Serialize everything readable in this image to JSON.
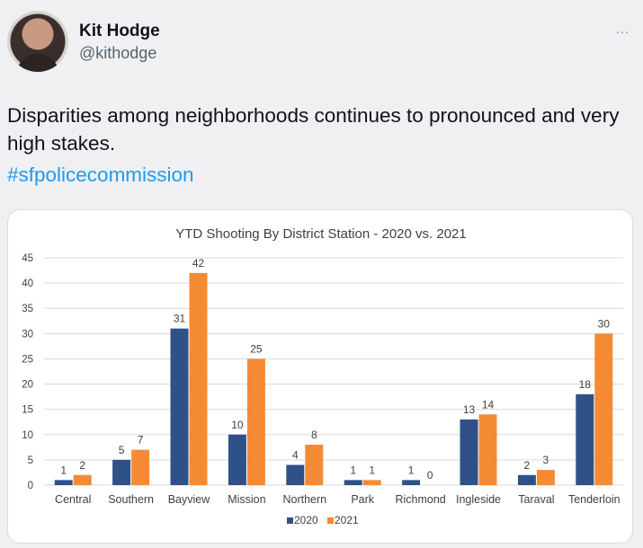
{
  "tweet": {
    "author_name": "Kit Hodge",
    "author_handle": "@kithodge",
    "more_icon": "…",
    "text": "Disparities among neighborhoods continues to pronounced and very high stakes.",
    "hashtag": "#sfpolicecommission"
  },
  "colors": {
    "series_2020": "#2e5288",
    "series_2021": "#f58a34",
    "grid": "#d9d9d9",
    "hashtag": "#1d9bf0"
  },
  "chart_data": {
    "type": "bar",
    "title": "YTD Shooting By District Station - 2020 vs. 2021",
    "categories": [
      "Central",
      "Southern",
      "Bayview",
      "Mission",
      "Northern",
      "Park",
      "Richmond",
      "Ingleside",
      "Taraval",
      "Tenderloin"
    ],
    "series": [
      {
        "name": "2020",
        "values": [
          1,
          5,
          31,
          10,
          4,
          1,
          1,
          13,
          2,
          18
        ]
      },
      {
        "name": "2021",
        "values": [
          2,
          7,
          42,
          25,
          8,
          1,
          0,
          14,
          3,
          30
        ]
      }
    ],
    "yticks": [
      "0",
      "5",
      "10",
      "15",
      "20",
      "25",
      "30",
      "35",
      "40",
      "45"
    ],
    "ylim": [
      0,
      45
    ],
    "grid": true,
    "legend": "bottom"
  }
}
